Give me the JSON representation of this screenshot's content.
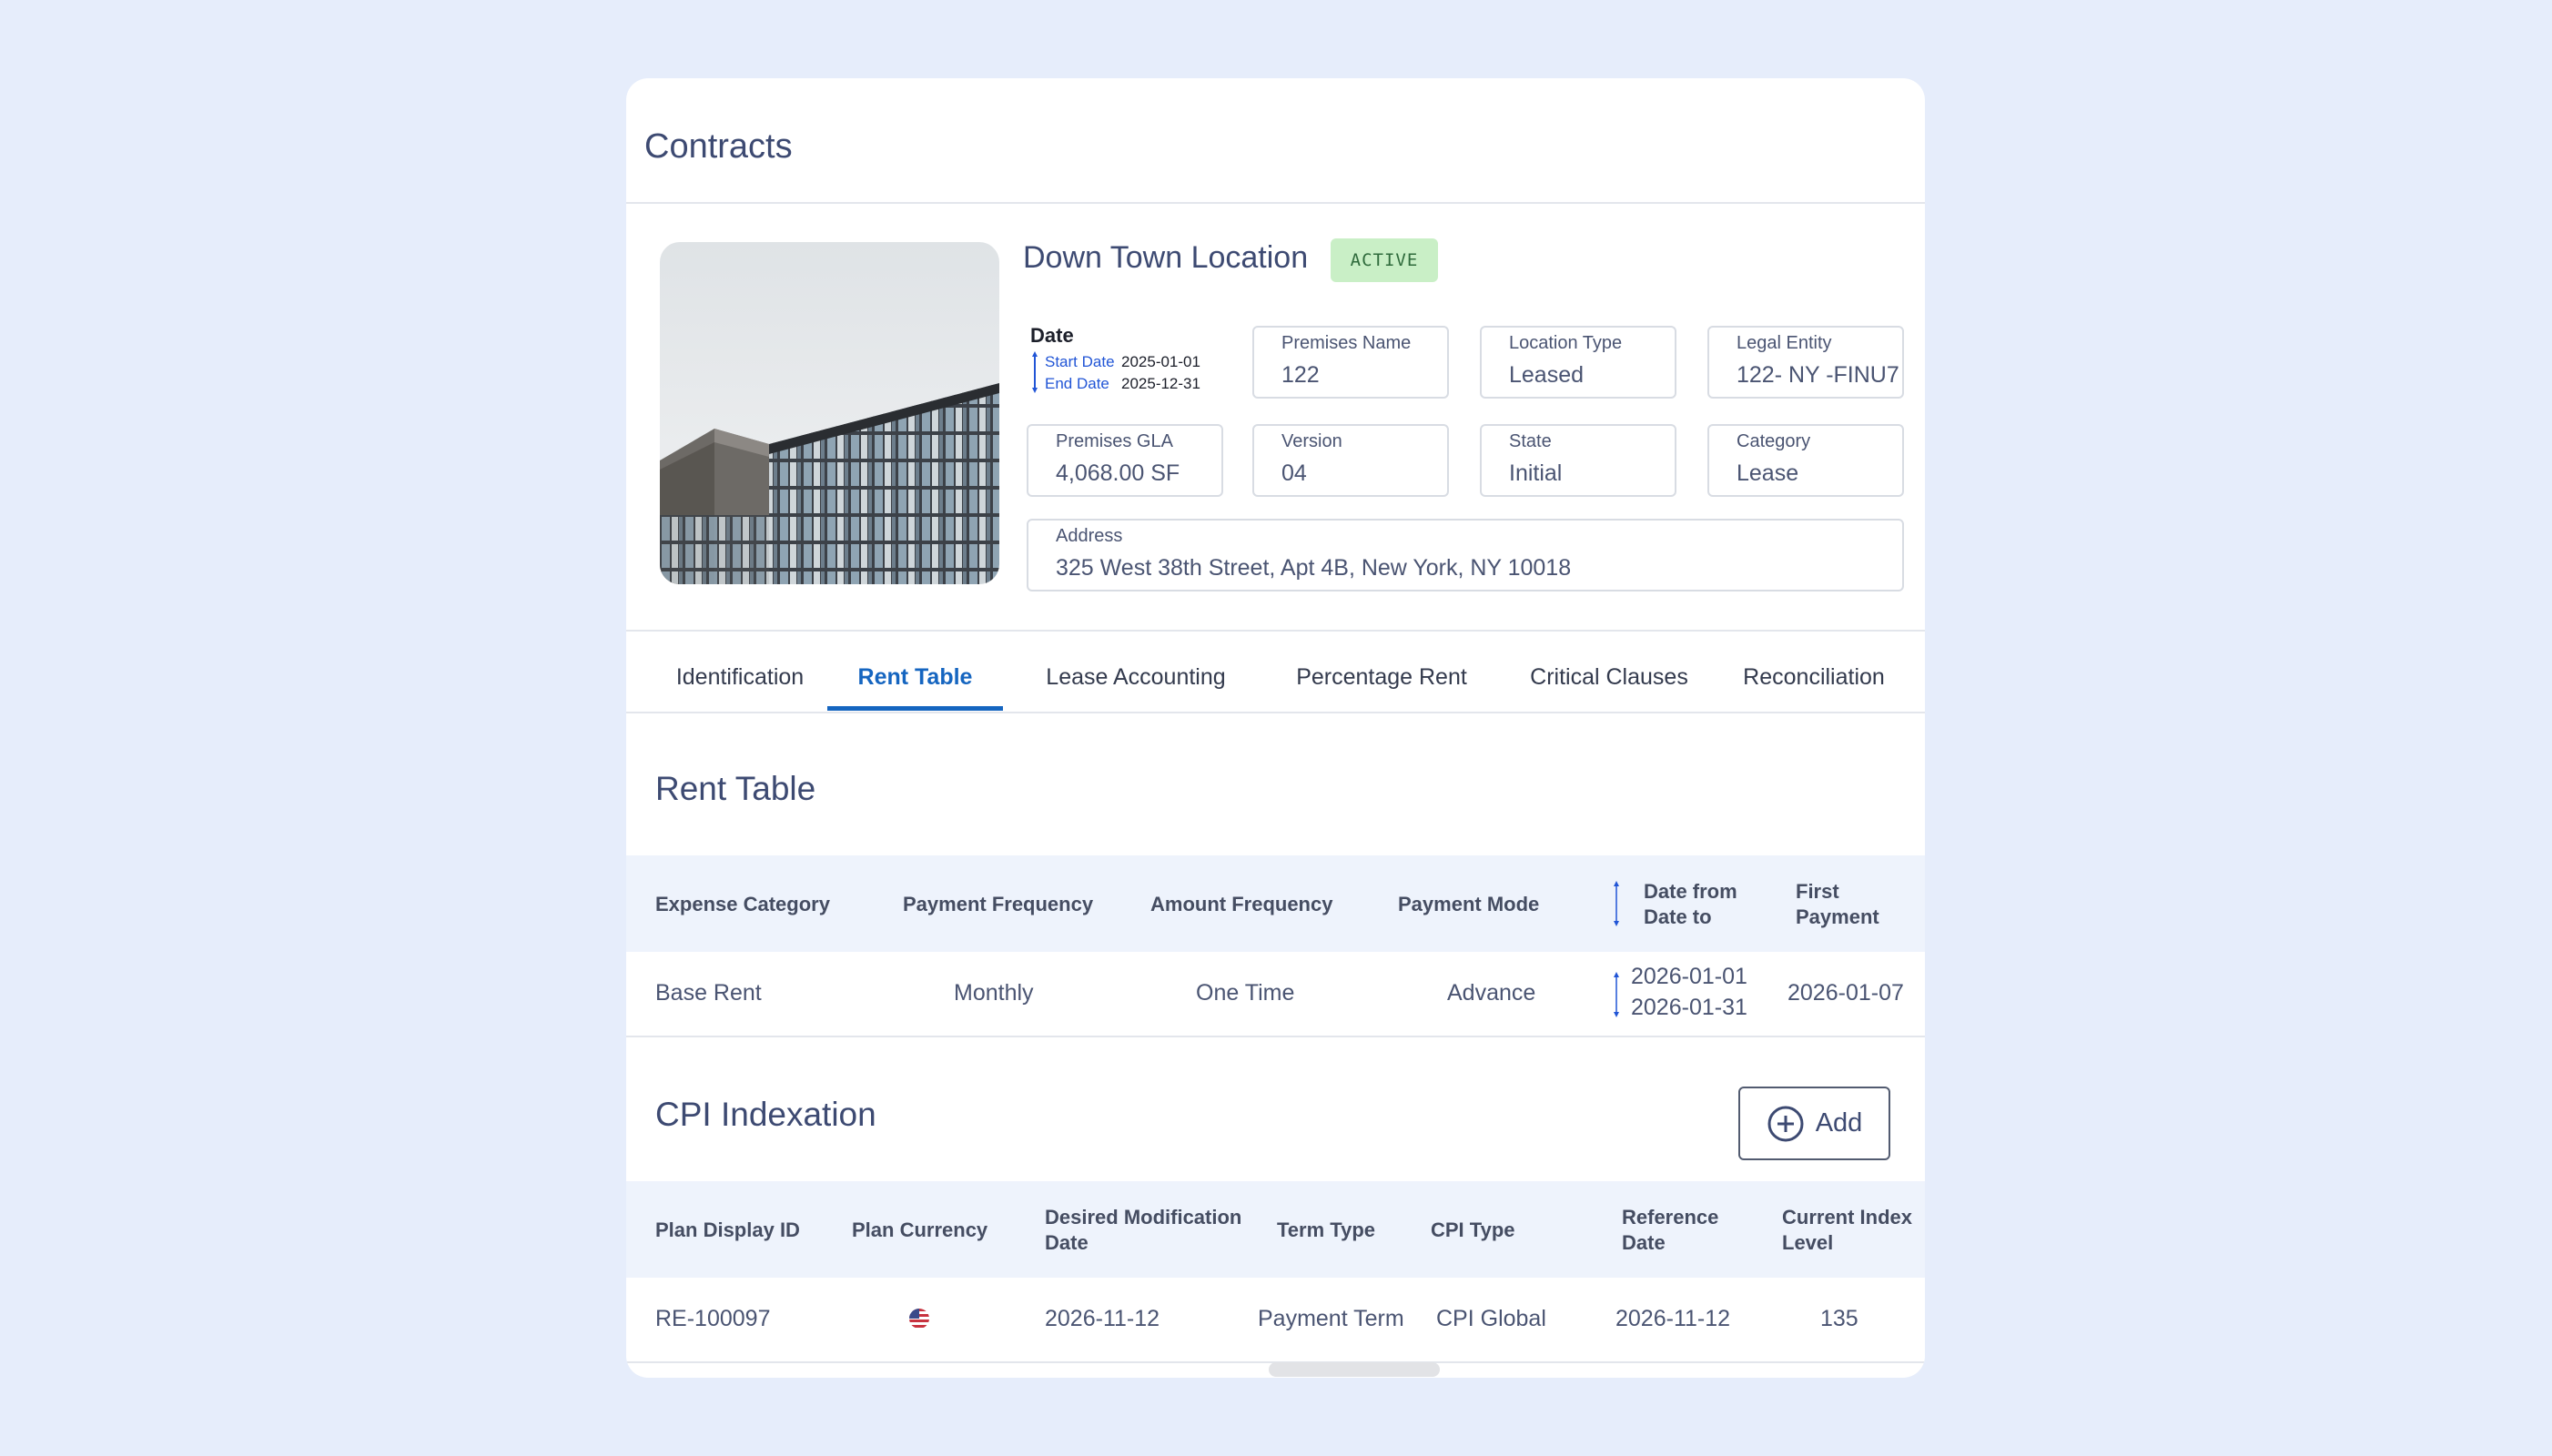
{
  "page": {
    "title": "Contracts"
  },
  "location": {
    "name": "Down Town Location",
    "status": "ACTIVE",
    "image_alt": "building-photo"
  },
  "date": {
    "title": "Date",
    "start_label": "Start Date",
    "start_value": "2025-01-01",
    "end_label": "End Date",
    "end_value": "2025-12-31"
  },
  "fields": {
    "premises_name": {
      "label": "Premises Name",
      "value": "122"
    },
    "location_type": {
      "label": "Location Type",
      "value": "Leased"
    },
    "legal_entity": {
      "label": "Legal Entity",
      "value": "122- NY -FINU7"
    },
    "premises_gla": {
      "label": "Premises GLA",
      "value": "4,068.00 SF"
    },
    "version": {
      "label": "Version",
      "value": "04"
    },
    "state": {
      "label": "State",
      "value": "Initial"
    },
    "category": {
      "label": "Category",
      "value": "Lease"
    },
    "address": {
      "label": "Address",
      "value": "325 West 38th Street, Apt 4B, New York, NY 10018"
    }
  },
  "tabs": [
    {
      "label": "Identification",
      "active": false
    },
    {
      "label": "Rent Table",
      "active": true
    },
    {
      "label": "Lease Accounting",
      "active": false
    },
    {
      "label": "Percentage Rent",
      "active": false
    },
    {
      "label": "Critical Clauses",
      "active": false
    },
    {
      "label": "Reconciliation",
      "active": false
    }
  ],
  "rent_table": {
    "title": "Rent Table",
    "headers": {
      "expense_category": "Expense Category",
      "payment_frequency": "Payment Frequency",
      "amount_frequency": "Amount Frequency",
      "payment_mode": "Payment Mode",
      "date_from": "Date from",
      "date_to": "Date to",
      "first_payment_1": "First",
      "first_payment_2": "Payment"
    },
    "rows": [
      {
        "expense_category": "Base Rent",
        "payment_frequency": "Monthly",
        "amount_frequency": "One Time",
        "payment_mode": "Advance",
        "date_from": "2026-01-01",
        "date_to": "2026-01-31",
        "first_payment": "2026-01-07"
      }
    ]
  },
  "cpi": {
    "title": "CPI Indexation",
    "add_label": "Add",
    "add_icon": "plus-circle-icon",
    "headers": {
      "plan_display_id": "Plan Display ID",
      "plan_currency": "Plan Currency",
      "desired_mod_1": "Desired Modification",
      "desired_mod_2": "Date",
      "term_type": "Term Type",
      "cpi_type": "CPI Type",
      "reference_1": "Reference",
      "reference_2": "Date",
      "current_index_1": "Current Index",
      "current_index_2": "Level"
    },
    "rows": [
      {
        "plan_display_id": "RE-100097",
        "plan_currency_icon": "us-flag-icon",
        "desired_modification_date": "2026-11-12",
        "term_type": "Payment Term",
        "cpi_type": "CPI Global",
        "reference_date": "2026-11-12",
        "current_index_level": "135"
      }
    ]
  },
  "colors": {
    "background": "#e6edfb",
    "accent": "#1565c0",
    "badge_bg": "#c9efc6",
    "table_header_bg": "#eef3fc"
  }
}
